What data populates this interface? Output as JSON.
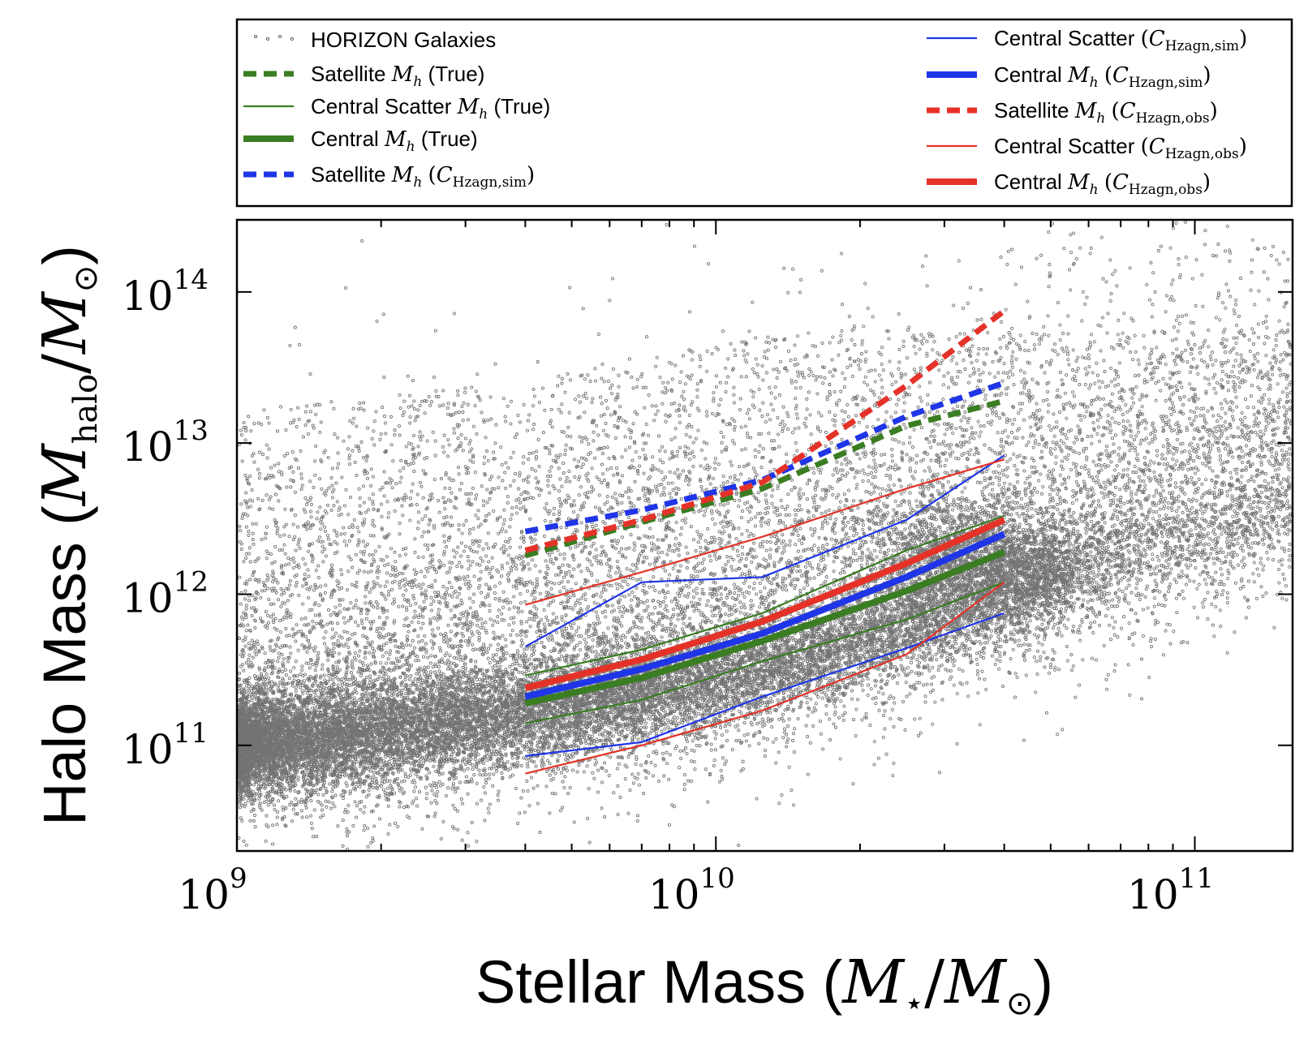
{
  "chart_data": {
    "type": "scatter",
    "title": "",
    "xlabel": "Stellar Mass (M★/M⊙)",
    "ylabel": "Halo Mass (M_halo/M⊙)",
    "xlabel_parts": {
      "word": "Stellar Mass",
      "sym": "M",
      "sub": "⋆",
      "sym2": "M",
      "sub2": "⊙"
    },
    "ylabel_parts": {
      "word": "Halo Mass",
      "sym": "M",
      "sub": "halo",
      "sym2": "M",
      "sub2": "⊙"
    },
    "x_scale": "log",
    "y_scale": "log",
    "xlim": [
      1000000000.0,
      160000000000.0
    ],
    "ylim": [
      20000000000.0,
      300000000000000.0
    ],
    "x_ticks": [
      {
        "base": "10",
        "exp": "9",
        "value": 1000000000.0
      },
      {
        "base": "10",
        "exp": "10",
        "value": 10000000000.0
      },
      {
        "base": "10",
        "exp": "11",
        "value": 100000000000.0
      }
    ],
    "y_ticks": [
      {
        "base": "10",
        "exp": "11",
        "value": 100000000000.0
      },
      {
        "base": "10",
        "exp": "12",
        "value": 1000000000000.0
      },
      {
        "base": "10",
        "exp": "13",
        "value": 10000000000000.0
      },
      {
        "base": "10",
        "exp": "14",
        "value": 100000000000000.0
      }
    ],
    "grid": false,
    "legend_position": "top (above plot)",
    "scatter": {
      "name": "HORIZON Galaxies",
      "color": "#000000",
      "description_points": "approx. 30000 galaxies; log10 halo mass centred near 11.0 at 1e9 and rising to ~12.3 at 5e10, scatter widening toward low stellar mass and upper envelope extending to ~1e14"
    },
    "x_curve": [
      4000000000.0,
      7000000000.0,
      12500000000.0,
      25000000000.0,
      40000000000.0
    ],
    "series": [
      {
        "key": "sat_true",
        "label": "Satellite",
        "sym": "M",
        "sub": "h",
        "suffix": "(True)",
        "calsub": "",
        "color": "#3a7d22",
        "width": 7,
        "dash": "16,9",
        "column": 0,
        "x": [
          4000000000.0,
          7000000000.0,
          12500000000.0,
          25000000000.0,
          40000000000.0
        ],
        "y": [
          1800000000000.0,
          3000000000000.0,
          5000000000000.0,
          13000000000000.0,
          19000000000000.0
        ]
      },
      {
        "key": "cs_true_hi",
        "label": "Central Scatter",
        "sym": "M",
        "sub": "h",
        "suffix": "(True)",
        "calsub": "",
        "color": "#3a7d22",
        "width": 2.2,
        "dash": "",
        "column": 0,
        "x": [
          4000000000.0,
          7000000000.0,
          12500000000.0,
          25000000000.0,
          40000000000.0
        ],
        "y": [
          290000000000.0,
          430000000000.0,
          750000000000.0,
          1950000000000.0,
          3300000000000.0
        ]
      },
      {
        "key": "cs_true_lo",
        "label": "",
        "color": "#3a7d22",
        "width": 2.2,
        "dash": "",
        "legend": false,
        "x": [
          4000000000.0,
          7000000000.0,
          12500000000.0,
          25000000000.0,
          40000000000.0
        ],
        "y": [
          140000000000.0,
          200000000000.0,
          360000000000.0,
          680000000000.0,
          1200000000000.0
        ]
      },
      {
        "key": "c_true",
        "label": "Central",
        "sym": "M",
        "sub": "h",
        "suffix": "(True)",
        "calsub": "",
        "color": "#3a7d22",
        "width": 8,
        "dash": "",
        "column": 0,
        "x": [
          4000000000.0,
          7000000000.0,
          12500000000.0,
          25000000000.0,
          40000000000.0
        ],
        "y": [
          190000000000.0,
          280000000000.0,
          490000000000.0,
          1050000000000.0,
          1900000000000.0
        ]
      },
      {
        "key": "sat_sim",
        "label": "Satellite",
        "sym": "M",
        "sub": "h",
        "suffix": "",
        "calsub": "Hzagn,sim",
        "color": "#1f35e8",
        "width": 7,
        "dash": "16,9",
        "column": 0,
        "x": [
          4000000000.0,
          7000000000.0,
          12500000000.0,
          25000000000.0,
          40000000000.0
        ],
        "y": [
          2600000000000.0,
          3600000000000.0,
          5700000000000.0,
          15000000000000.0,
          25000000000000.0
        ]
      },
      {
        "key": "cs_sim_hi",
        "label": "Central Scatter",
        "sym": "",
        "sub": "",
        "suffix": "",
        "calsub": "Hzagn,sim",
        "color": "#1f35e8",
        "width": 2.2,
        "dash": "",
        "column": 1,
        "x": [
          4000000000.0,
          7000000000.0,
          12500000000.0,
          25000000000.0,
          40000000000.0
        ],
        "y": [
          450000000000.0,
          1200000000000.0,
          1300000000000.0,
          3100000000000.0,
          8300000000000.0
        ]
      },
      {
        "key": "cs_sim_lo",
        "label": "",
        "color": "#1f35e8",
        "width": 2.2,
        "dash": "",
        "legend": false,
        "x": [
          4000000000.0,
          7000000000.0,
          12500000000.0,
          25000000000.0,
          40000000000.0
        ],
        "y": [
          85000000000.0,
          105000000000.0,
          210000000000.0,
          440000000000.0,
          750000000000.0
        ]
      },
      {
        "key": "c_sim",
        "label": "Central",
        "sym": "M",
        "sub": "h",
        "suffix": "",
        "calsub": "Hzagn,sim",
        "color": "#1f35e8",
        "width": 8,
        "dash": "",
        "column": 1,
        "x": [
          4000000000.0,
          7000000000.0,
          12500000000.0,
          25000000000.0,
          40000000000.0
        ],
        "y": [
          210000000000.0,
          320000000000.0,
          550000000000.0,
          1300000000000.0,
          2500000000000.0
        ]
      },
      {
        "key": "sat_obs",
        "label": "Satellite",
        "sym": "M",
        "sub": "h",
        "suffix": "",
        "calsub": "Hzagn,obs",
        "color": "#e53228",
        "width": 7,
        "dash": "16,9",
        "column": 1,
        "x": [
          4000000000.0,
          7000000000.0,
          12500000000.0,
          25000000000.0,
          40000000000.0
        ],
        "y": [
          1950000000000.0,
          3100000000000.0,
          5500000000000.0,
          24000000000000.0,
          75000000000000.0
        ]
      },
      {
        "key": "cs_obs_hi",
        "label": "Central Scatter",
        "sym": "",
        "sub": "",
        "suffix": "",
        "calsub": "Hzagn,obs",
        "color": "#e53228",
        "width": 2.2,
        "dash": "",
        "column": 1,
        "x": [
          4000000000.0,
          7000000000.0,
          12500000000.0,
          25000000000.0,
          40000000000.0
        ],
        "y": [
          850000000000.0,
          1400000000000.0,
          2400000000000.0,
          5000000000000.0,
          7800000000000.0
        ]
      },
      {
        "key": "cs_obs_lo",
        "label": "",
        "color": "#e53228",
        "width": 2.2,
        "dash": "",
        "legend": false,
        "x": [
          4000000000.0,
          7000000000.0,
          12500000000.0,
          25000000000.0,
          40000000000.0
        ],
        "y": [
          65000000000.0,
          100000000000.0,
          170000000000.0,
          400000000000.0,
          1200000000000.0
        ]
      },
      {
        "key": "c_obs",
        "label": "Central",
        "sym": "M",
        "sub": "h",
        "suffix": "",
        "calsub": "Hzagn,obs",
        "color": "#e53228",
        "width": 8,
        "dash": "",
        "column": 1,
        "x": [
          4000000000.0,
          7000000000.0,
          12500000000.0,
          25000000000.0,
          40000000000.0
        ],
        "y": [
          240000000000.0,
          370000000000.0,
          660000000000.0,
          1600000000000.0,
          3100000000000.0
        ]
      }
    ],
    "legend_order_left": [
      "horizon",
      "sat_true",
      "cs_true_hi",
      "c_true",
      "sat_sim"
    ],
    "legend_order_right": [
      "cs_sim_hi",
      "c_sim",
      "sat_obs",
      "cs_obs_hi",
      "c_obs"
    ]
  }
}
